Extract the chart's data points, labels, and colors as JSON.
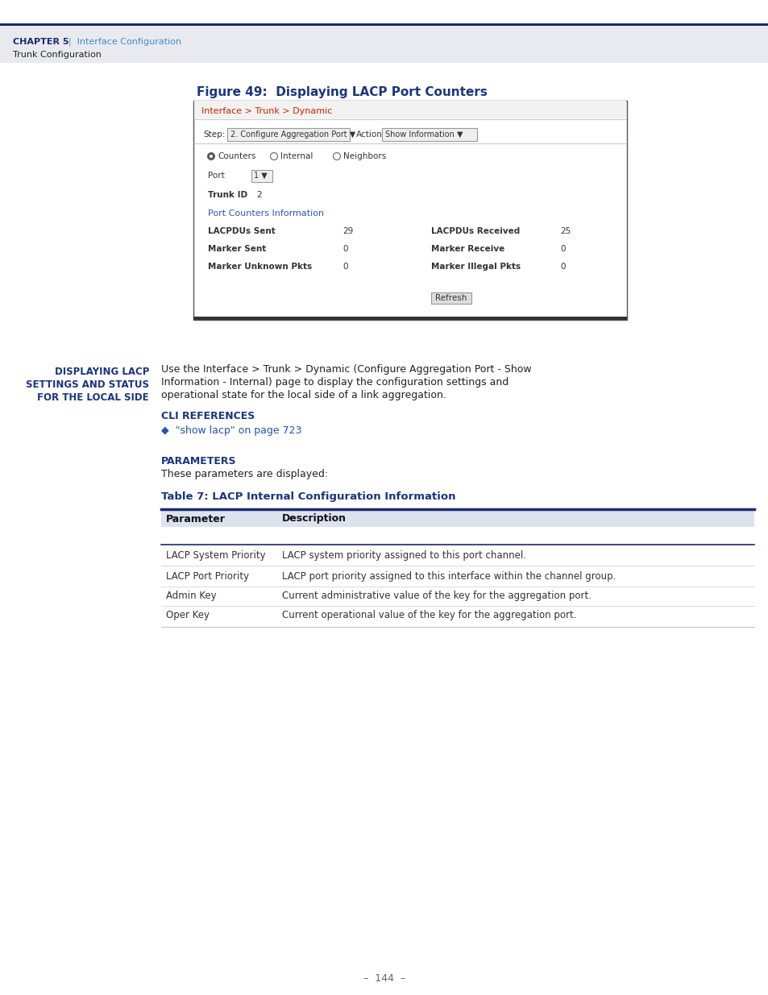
{
  "page_bg": "#ffffff",
  "header_bg": "#e8eaf0",
  "header_line_color": "#1a2a6c",
  "header_chapter": "CHAPTER 5",
  "header_pipe": "  |  Interface Configuration",
  "header_sub": "Trunk Configuration",
  "navy": "#1a2a6c",
  "blue_link": "#4477bb",
  "fig_title": "Figure 49:  Displaying LACP Port Counters",
  "fig_title_color": "#1a3580",
  "breadcrumb": "Interface > Trunk > Dynamic",
  "breadcrumb_color": "#cc2200",
  "step_label": "Step:",
  "step_value": "2. Configure Aggregation Port",
  "action_label": "Action:",
  "action_value": "Show Information",
  "radio_options": [
    "Counters",
    "Internal",
    "Neighbors"
  ],
  "port_label": "Port",
  "port_value": "1",
  "trunk_label": "Trunk ID",
  "trunk_value": "2",
  "section_color": "#3355bb",
  "section_title": "Port Counters Information",
  "counter_rows": [
    [
      "LACPDUs Sent",
      "29",
      "LACPDUs Received",
      "25"
    ],
    [
      "Marker Sent",
      "0",
      "Marker Receive",
      "0"
    ],
    [
      "Marker Unknown Pkts",
      "0",
      "Marker Illegal Pkts",
      "0"
    ]
  ],
  "refresh_label": "Refresh",
  "sidebar_lines": [
    "DISPLAYING LACP",
    "SETTINGS AND STATUS",
    "FOR THE LOCAL SIDE"
  ],
  "sidebar_color": "#1a3580",
  "body_lines": [
    "Use the Interface > Trunk > Dynamic (Configure Aggregation Port - Show",
    "Information - Internal) page to display the configuration settings and",
    "operational state for the local side of a link aggregation."
  ],
  "cli_title": "CLI REFERENCES",
  "cli_link": "◆  \"show lacp\" on page 723",
  "cli_title_color": "#1a3580",
  "cli_link_color": "#2255aa",
  "params_title": "PARAMETERS",
  "params_sub": "These parameters are displayed:",
  "params_title_color": "#1a3580",
  "table7_title": "Table 7: LACP Internal Configuration Information",
  "table7_title_color": "#1a3580",
  "table7_header_bg": "#dde2ef",
  "table7_line_color": "#1a2a6c",
  "table7_cols": [
    "Parameter",
    "Description"
  ],
  "table7_rows": [
    [
      "LACP System Priority",
      "LACP system priority assigned to this port channel."
    ],
    [
      "LACP Port Priority",
      "LACP port priority assigned to this interface within the channel group."
    ],
    [
      "Admin Key",
      "Current administrative value of the key for the aggregation port."
    ],
    [
      "Oper Key",
      "Current operational value of the key for the aggregation port."
    ]
  ],
  "page_num": "–  144  –"
}
